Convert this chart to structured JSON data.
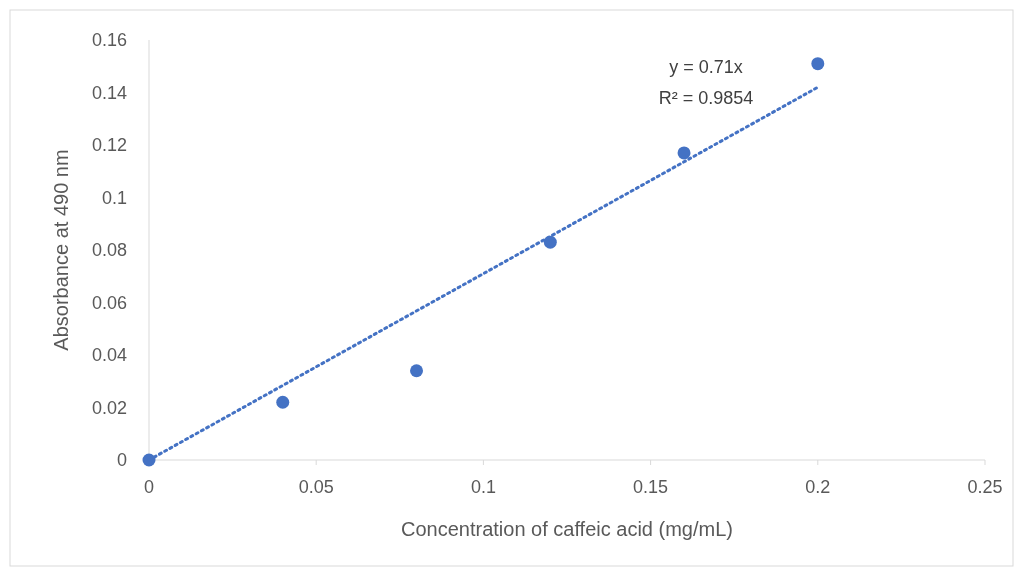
{
  "chart_data": {
    "type": "scatter",
    "xlabel": "Concentration of caffeic acid (mg/mL)",
    "ylabel": "Absorbance at 490 nm",
    "xlim": [
      0,
      0.25
    ],
    "xticks": [
      0,
      0.05,
      0.1,
      0.15,
      0.2,
      0.25
    ],
    "ylim": [
      0,
      0.16
    ],
    "yticks": [
      0,
      0.02,
      0.04,
      0.06,
      0.08,
      0.1,
      0.12,
      0.14,
      0.16
    ],
    "grid": false,
    "series": [
      {
        "color": "#4472c4",
        "marker": "circle",
        "x": [
          0,
          0.04,
          0.08,
          0.12,
          0.16,
          0.2
        ],
        "values": [
          0,
          0.022,
          0.034,
          0.083,
          0.117,
          0.151
        ]
      },
      {
        "type": "line",
        "color": "#4472c4",
        "marker": "none",
        "line_style": "dotted",
        "x": [
          0,
          0.2
        ],
        "values": [
          0,
          0.142
        ]
      }
    ],
    "annotations": [
      "y = 0.71x",
      "R² = 0.9854"
    ]
  }
}
